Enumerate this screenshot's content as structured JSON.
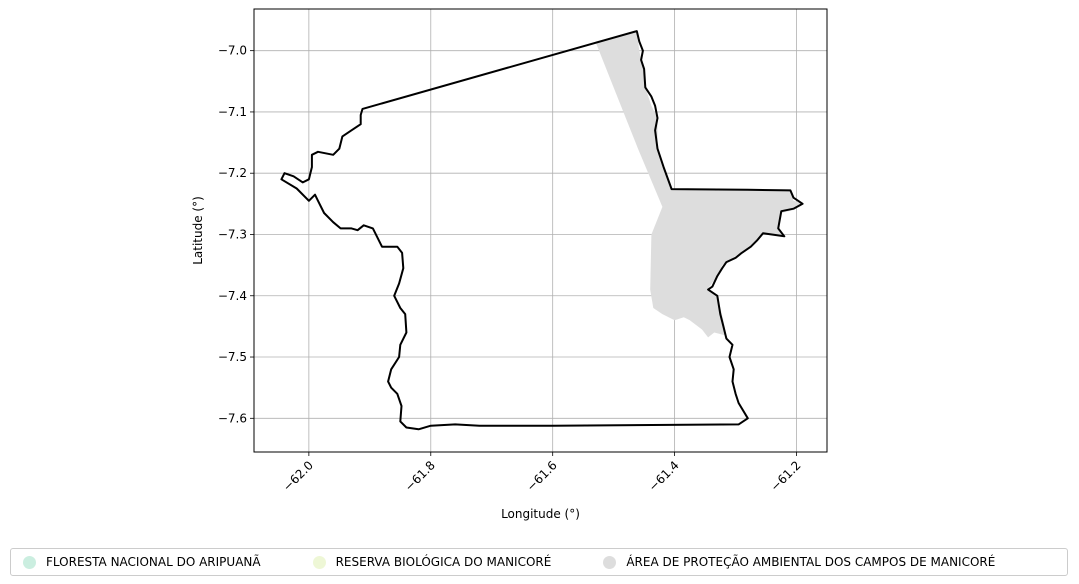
{
  "chart_data": {
    "type": "map",
    "xlabel": "Longitude (°)",
    "ylabel": "Latitude (°)",
    "xlim": [
      -62.09,
      -61.15
    ],
    "ylim": [
      -7.655,
      -6.932
    ],
    "xticks": [
      -62.0,
      -61.8,
      -61.6,
      -61.4,
      -61.2
    ],
    "xtick_labels": [
      "−62.0",
      "−61.8",
      "−61.6",
      "−61.4",
      "−61.2"
    ],
    "yticks": [
      -7.0,
      -7.1,
      -7.2,
      -7.3,
      -7.4,
      -7.5,
      -7.6
    ],
    "ytick_labels": [
      "−7.0",
      "−7.1",
      "−7.2",
      "−7.3",
      "−7.4",
      "−7.5",
      "−7.6"
    ],
    "grid": true,
    "legend_position": "bottom",
    "legend": [
      {
        "label": "FLORESTA NACIONAL DO ARIPUANÃ",
        "color": "#cbeee0"
      },
      {
        "label": "RESERVA BIOLÓGICA DO MANICORÉ",
        "color": "#eef7d6"
      },
      {
        "label": "ÁREA DE PROTEÇÃO AMBIENTAL DOS CAMPOS DE MANICORÉ",
        "color": "#dddddd"
      }
    ],
    "layers": [
      {
        "type": "polygon",
        "fill": "#dddddd",
        "stroke": "none",
        "coords": [
          [
            -61.53,
            -6.985
          ],
          [
            -61.462,
            -6.968
          ],
          [
            -61.458,
            -7.0
          ],
          [
            -61.452,
            -7.03
          ],
          [
            -61.448,
            -7.06
          ],
          [
            -61.438,
            -7.09
          ],
          [
            -61.428,
            -7.11
          ],
          [
            -61.428,
            -7.16
          ],
          [
            -61.418,
            -7.19
          ],
          [
            -61.405,
            -7.226
          ],
          [
            -61.28,
            -7.227
          ],
          [
            -61.21,
            -7.228
          ],
          [
            -61.205,
            -7.245
          ],
          [
            -61.19,
            -7.25
          ],
          [
            -61.205,
            -7.26
          ],
          [
            -61.225,
            -7.265
          ],
          [
            -61.23,
            -7.29
          ],
          [
            -61.22,
            -7.303
          ],
          [
            -61.255,
            -7.298
          ],
          [
            -61.275,
            -7.32
          ],
          [
            -61.3,
            -7.335
          ],
          [
            -61.322,
            -7.35
          ],
          [
            -61.33,
            -7.368
          ],
          [
            -61.345,
            -7.388
          ],
          [
            -61.33,
            -7.4
          ],
          [
            -61.32,
            -7.44
          ],
          [
            -61.315,
            -7.465
          ],
          [
            -61.335,
            -7.46
          ],
          [
            -61.345,
            -7.468
          ],
          [
            -61.355,
            -7.455
          ],
          [
            -61.375,
            -7.44
          ],
          [
            -61.385,
            -7.435
          ],
          [
            -61.4,
            -7.44
          ],
          [
            -61.42,
            -7.43
          ],
          [
            -61.435,
            -7.42
          ],
          [
            -61.44,
            -7.39
          ],
          [
            -61.438,
            -7.3
          ],
          [
            -61.42,
            -7.255
          ],
          [
            -61.46,
            -7.16
          ],
          [
            -61.5,
            -7.06
          ],
          [
            -61.53,
            -6.985
          ]
        ]
      },
      {
        "type": "polygon",
        "fill": "none",
        "stroke": "#000000",
        "coords": [
          [
            -61.912,
            -7.095
          ],
          [
            -61.462,
            -6.968
          ],
          [
            -61.458,
            -6.985
          ],
          [
            -61.452,
            -7.0
          ],
          [
            -61.455,
            -7.015
          ],
          [
            -61.45,
            -7.03
          ],
          [
            -61.448,
            -7.06
          ],
          [
            -61.438,
            -7.075
          ],
          [
            -61.432,
            -7.09
          ],
          [
            -61.428,
            -7.11
          ],
          [
            -61.432,
            -7.13
          ],
          [
            -61.428,
            -7.16
          ],
          [
            -61.418,
            -7.19
          ],
          [
            -61.405,
            -7.226
          ],
          [
            -61.28,
            -7.227
          ],
          [
            -61.21,
            -7.228
          ],
          [
            -61.205,
            -7.24
          ],
          [
            -61.19,
            -7.25
          ],
          [
            -61.205,
            -7.258
          ],
          [
            -61.225,
            -7.262
          ],
          [
            -61.23,
            -7.29
          ],
          [
            -61.22,
            -7.303
          ],
          [
            -61.255,
            -7.298
          ],
          [
            -61.265,
            -7.31
          ],
          [
            -61.275,
            -7.32
          ],
          [
            -61.29,
            -7.33
          ],
          [
            -61.3,
            -7.338
          ],
          [
            -61.315,
            -7.345
          ],
          [
            -61.322,
            -7.355
          ],
          [
            -61.33,
            -7.368
          ],
          [
            -61.338,
            -7.385
          ],
          [
            -61.345,
            -7.39
          ],
          [
            -61.33,
            -7.4
          ],
          [
            -61.325,
            -7.43
          ],
          [
            -61.32,
            -7.45
          ],
          [
            -61.315,
            -7.47
          ],
          [
            -61.305,
            -7.48
          ],
          [
            -61.31,
            -7.5
          ],
          [
            -61.303,
            -7.52
          ],
          [
            -61.305,
            -7.54
          ],
          [
            -61.3,
            -7.56
          ],
          [
            -61.295,
            -7.575
          ],
          [
            -61.28,
            -7.6
          ],
          [
            -61.295,
            -7.61
          ],
          [
            -61.6,
            -7.612
          ],
          [
            -61.72,
            -7.612
          ],
          [
            -61.76,
            -7.61
          ],
          [
            -61.8,
            -7.612
          ],
          [
            -61.82,
            -7.618
          ],
          [
            -61.84,
            -7.615
          ],
          [
            -61.85,
            -7.605
          ],
          [
            -61.848,
            -7.58
          ],
          [
            -61.855,
            -7.56
          ],
          [
            -61.865,
            -7.55
          ],
          [
            -61.87,
            -7.54
          ],
          [
            -61.865,
            -7.52
          ],
          [
            -61.852,
            -7.5
          ],
          [
            -61.85,
            -7.48
          ],
          [
            -61.84,
            -7.46
          ],
          [
            -61.842,
            -7.43
          ],
          [
            -61.85,
            -7.42
          ],
          [
            -61.86,
            -7.4
          ],
          [
            -61.852,
            -7.38
          ],
          [
            -61.845,
            -7.355
          ],
          [
            -61.847,
            -7.33
          ],
          [
            -61.855,
            -7.32
          ],
          [
            -61.88,
            -7.32
          ],
          [
            -61.895,
            -7.29
          ],
          [
            -61.91,
            -7.285
          ],
          [
            -61.92,
            -7.293
          ],
          [
            -61.93,
            -7.29
          ],
          [
            -61.948,
            -7.29
          ],
          [
            -61.96,
            -7.28
          ],
          [
            -61.975,
            -7.265
          ],
          [
            -61.985,
            -7.245
          ],
          [
            -61.99,
            -7.235
          ],
          [
            -62.0,
            -7.245
          ],
          [
            -62.02,
            -7.225
          ],
          [
            -62.045,
            -7.21
          ],
          [
            -62.04,
            -7.2
          ],
          [
            -62.025,
            -7.205
          ],
          [
            -62.01,
            -7.215
          ],
          [
            -62.0,
            -7.21
          ],
          [
            -61.995,
            -7.19
          ],
          [
            -61.995,
            -7.17
          ],
          [
            -61.985,
            -7.165
          ],
          [
            -61.96,
            -7.17
          ],
          [
            -61.95,
            -7.16
          ],
          [
            -61.945,
            -7.14
          ],
          [
            -61.93,
            -7.13
          ],
          [
            -61.915,
            -7.12
          ],
          [
            -61.915,
            -7.105
          ],
          [
            -61.912,
            -7.095
          ]
        ]
      }
    ]
  }
}
